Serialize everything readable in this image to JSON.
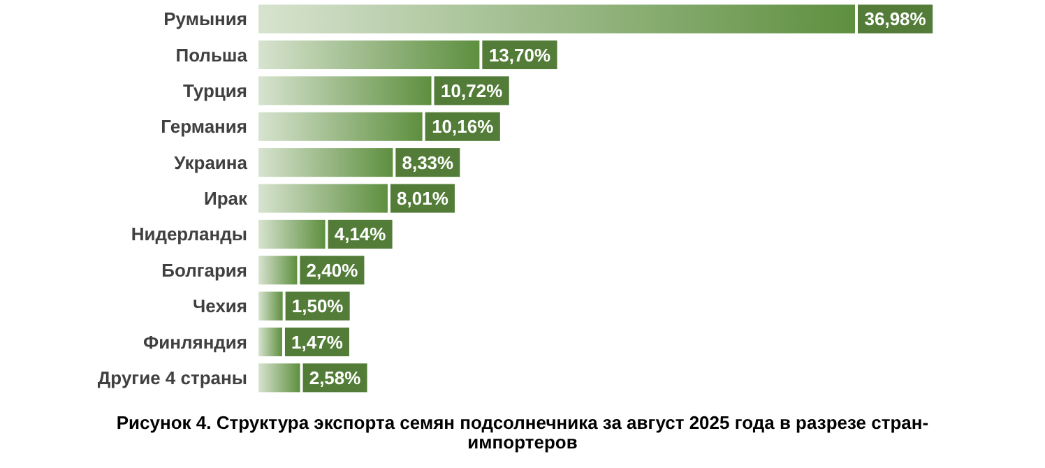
{
  "chart_data": {
    "type": "bar",
    "orientation": "horizontal",
    "title": "Рисунок 4. Структура экспорта семян подсолнечника за август 2025 года в разрезе стран-импортеров",
    "categories": [
      "Румыния",
      "Польша",
      "Турция",
      "Германия",
      "Украина",
      "Ирак",
      "Нидерланды",
      "Болгария",
      "Чехия",
      "Финляндия",
      "Другие 4 страны"
    ],
    "values": [
      36.98,
      13.7,
      10.72,
      10.16,
      8.33,
      8.01,
      4.14,
      2.4,
      1.5,
      1.47,
      2.58
    ],
    "value_labels": [
      "36,98%",
      "13,70%",
      "10,72%",
      "10,16%",
      "8,33%",
      "8,01%",
      "4,14%",
      "2,40%",
      "1,50%",
      "1,47%",
      "2,58%"
    ],
    "color": "#5e8f3f"
  }
}
